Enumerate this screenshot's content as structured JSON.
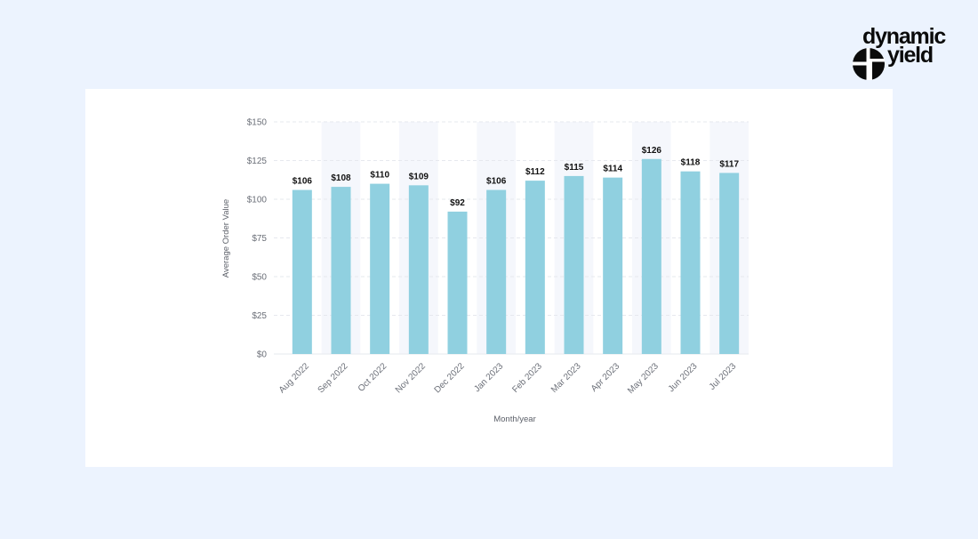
{
  "brand": {
    "line1": "dynamic",
    "line2": "yield",
    "icon": "dynamic-yield-logo-mark"
  },
  "colors": {
    "page_background": "#ecf3fe",
    "card_background": "#ffffff",
    "bar": "#90d0e0",
    "band": "#f5f7fc",
    "grid": "#e6e8ee"
  },
  "chart_data": {
    "type": "bar",
    "categories": [
      "Aug 2022",
      "Sep 2022",
      "Oct 2022",
      "Nov 2022",
      "Dec 2022",
      "Jan 2023",
      "Feb 2023",
      "Mar 2023",
      "Apr 2023",
      "May 2023",
      "Jun 2023",
      "Jul 2023"
    ],
    "values": [
      106,
      108,
      110,
      109,
      92,
      106,
      112,
      115,
      114,
      126,
      118,
      117
    ],
    "value_labels": [
      "$106",
      "$108",
      "$110",
      "$109",
      "$92",
      "$106",
      "$112",
      "$115",
      "$114",
      "$126",
      "$118",
      "$117"
    ],
    "xlabel": "Month/year",
    "ylabel": "Average Order Value",
    "ylim": [
      0,
      150
    ],
    "yticks": [
      0,
      25,
      50,
      75,
      100,
      125,
      150
    ],
    "ytick_labels": [
      "$0",
      "$25",
      "$50",
      "$75",
      "$100",
      "$125",
      "$150"
    ],
    "grid": true,
    "alternating_bands": true
  }
}
